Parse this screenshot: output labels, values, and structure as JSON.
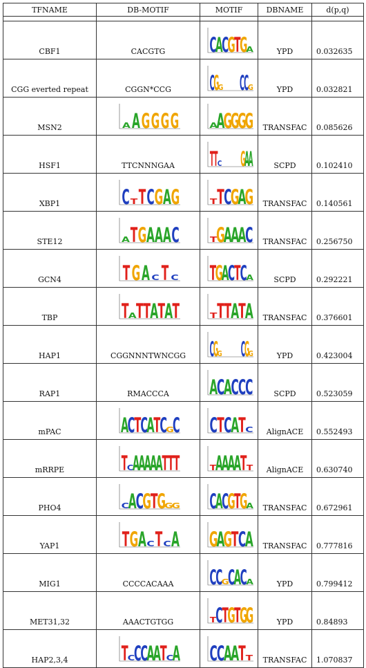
{
  "columns": [
    "TFNAME",
    "DB-MOTIF",
    "MOTIF",
    "DBNAME",
    "d(p,q)"
  ],
  "colors": {
    "A": "#2aa52a",
    "C": "#1f3fbf",
    "G": "#f0a500",
    "T": "#e0201a",
    "N": "#888888",
    "border": "#333333"
  },
  "rows": [
    {
      "tfname": "CBF1",
      "db_motif": "CACGTG",
      "db_logo": null,
      "motif_logo": "CACGTGa",
      "dbname": "YPD",
      "dist": "0.032635"
    },
    {
      "tfname": "CGG everted repeat",
      "db_motif": "CGGN*CCG",
      "db_logo": null,
      "motif_logo": "CGg....CCg",
      "dbname": "YPD",
      "dist": "0.032821"
    },
    {
      "tfname": "MSN2",
      "db_motif": "",
      "db_logo": "aAGGGG",
      "motif_logo": "aAGGGG",
      "dbname": "TRANSFAC",
      "dist": "0.085626"
    },
    {
      "tfname": "HSF1",
      "db_motif": "TTCNNNGAA",
      "db_logo": null,
      "motif_logo": "TTc.....GAA",
      "dbname": "SCPD",
      "dist": "0.102410"
    },
    {
      "tfname": "XBP1",
      "db_motif": "",
      "db_logo": "CtTCGAG",
      "motif_logo": "tTCGAG",
      "dbname": "TRANSFAC",
      "dist": "0.140561"
    },
    {
      "tfname": "STE12",
      "db_motif": "",
      "db_logo": "aTGAAAC",
      "motif_logo": "tGAAAC",
      "dbname": "TRANSFAC",
      "dist": "0.256750"
    },
    {
      "tfname": "GCN4",
      "db_motif": "",
      "db_logo": "TGAcTc",
      "motif_logo": "TGACTCa",
      "dbname": "SCPD",
      "dist": "0.292221"
    },
    {
      "tfname": "TBP",
      "db_motif": "",
      "db_logo": "TaTTATAT",
      "motif_logo": "tTTATA",
      "dbname": "TRANSFAC",
      "dist": "0.376601"
    },
    {
      "tfname": "HAP1",
      "db_motif": "CGGNNNTWNCGG",
      "db_logo": null,
      "motif_logo": "CGg.....CGg",
      "dbname": "YPD",
      "dist": "0.423004"
    },
    {
      "tfname": "RAP1",
      "db_motif": "RMACCCA",
      "db_logo": null,
      "motif_logo": "ACACCC",
      "dbname": "SCPD",
      "dist": "0.523059"
    },
    {
      "tfname": "mPAC",
      "db_motif": "",
      "db_logo": "ACTCATCgC",
      "motif_logo": "CTCATc",
      "dbname": "AlignACE",
      "dist": "0.552493"
    },
    {
      "tfname": "mRRPE",
      "db_motif": "",
      "db_logo": "TcAAAAATTT",
      "motif_logo": "tAAAATt",
      "dbname": "AlignACE",
      "dist": "0.630740"
    },
    {
      "tfname": "PHO4",
      "db_motif": "",
      "db_logo": "cACGTGgg",
      "motif_logo": "CACGTGa",
      "dbname": "TRANSFAC",
      "dist": "0.672961"
    },
    {
      "tfname": "YAP1",
      "db_motif": "",
      "db_logo": "TGAcTcA",
      "motif_logo": "GAGTCA",
      "dbname": "TRANSFAC",
      "dist": "0.777816"
    },
    {
      "tfname": "MIG1",
      "db_motif": "CCCCACAAA",
      "db_logo": null,
      "motif_logo": "CCgCACa",
      "dbname": "YPD",
      "dist": "0.799412"
    },
    {
      "tfname": "MET31,32",
      "db_motif": "AAACTGTGG",
      "db_logo": null,
      "motif_logo": "tCTGTGG",
      "dbname": "YPD",
      "dist": "0.84893"
    },
    {
      "tfname": "HAP2,3,4",
      "db_motif": "",
      "db_logo": "TcCCAATcA",
      "motif_logo": "CCAATt",
      "dbname": "TRANSFAC",
      "dist": "1.070837"
    }
  ]
}
